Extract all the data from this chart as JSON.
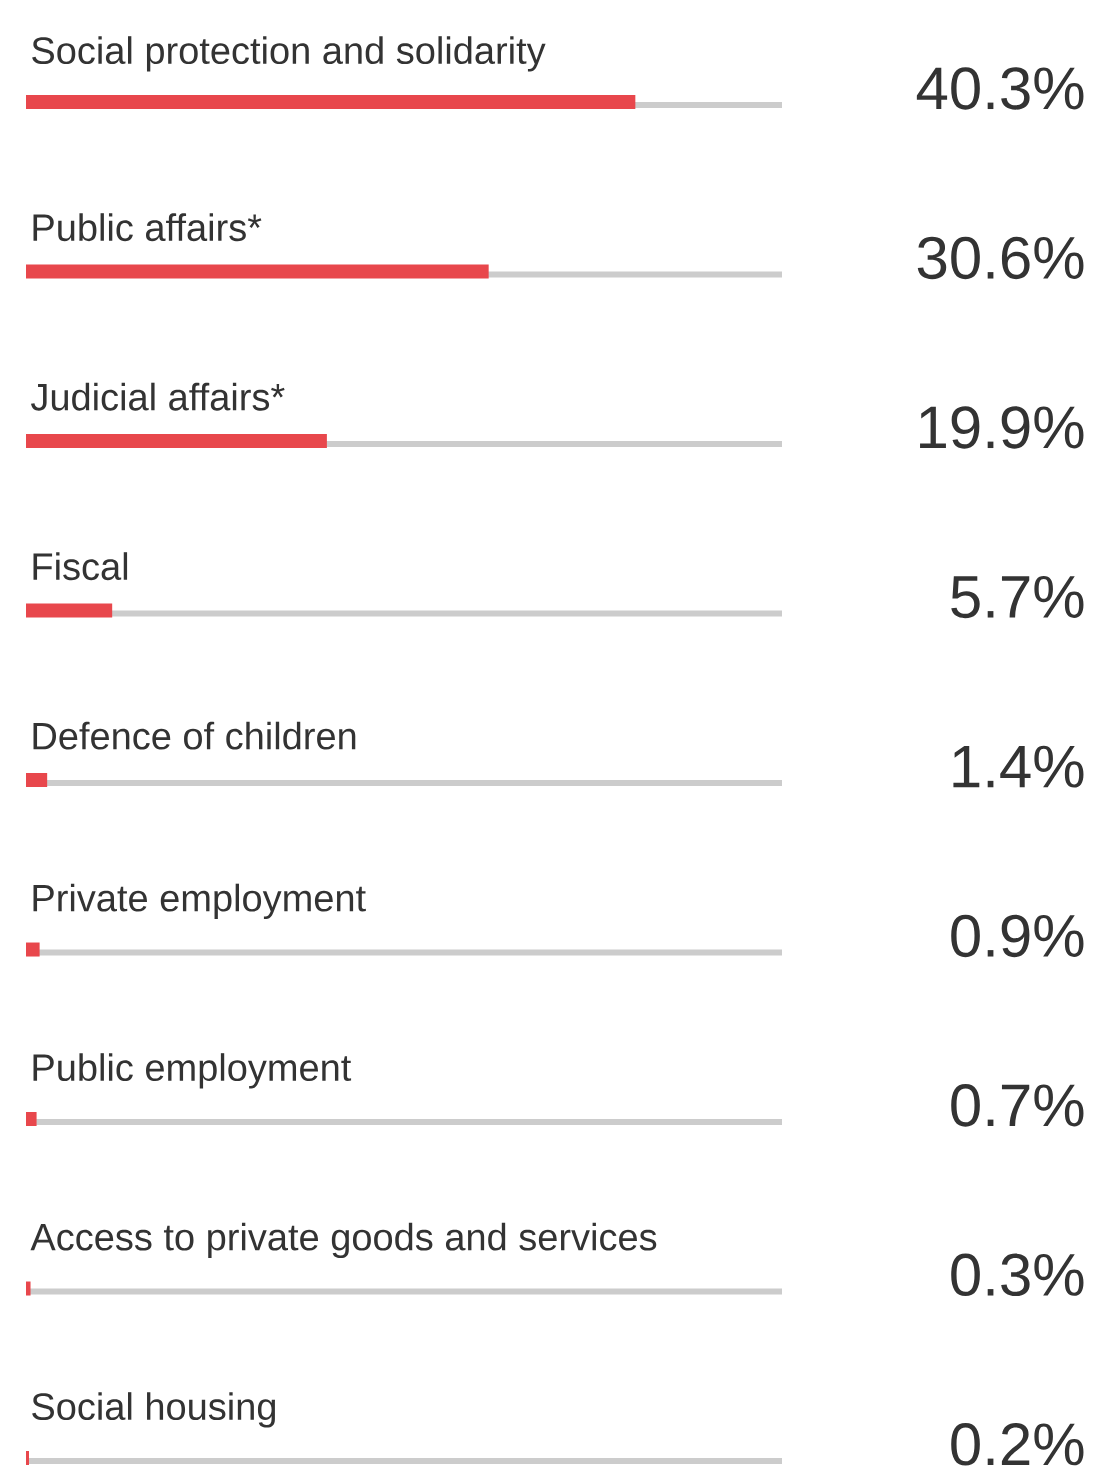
{
  "chart_data": {
    "type": "bar",
    "orientation": "horizontal",
    "categories": [
      "Social protection and solidarity",
      "Public affairs*",
      "Judicial affairs*",
      "Fiscal",
      "Defence of children",
      "Private employment",
      "Public employment",
      "Access to private goods and services",
      "Social housing"
    ],
    "values": [
      40.3,
      30.6,
      19.9,
      5.7,
      1.4,
      0.9,
      0.7,
      0.3,
      0.2
    ],
    "value_labels": [
      "40.3%",
      "30.6%",
      "19.9%",
      "5.7%",
      "1.4%",
      "0.9%",
      "0.7%",
      "0.3%",
      "0.2%"
    ],
    "color": "#e8474c",
    "xlim": [
      0,
      50
    ]
  }
}
